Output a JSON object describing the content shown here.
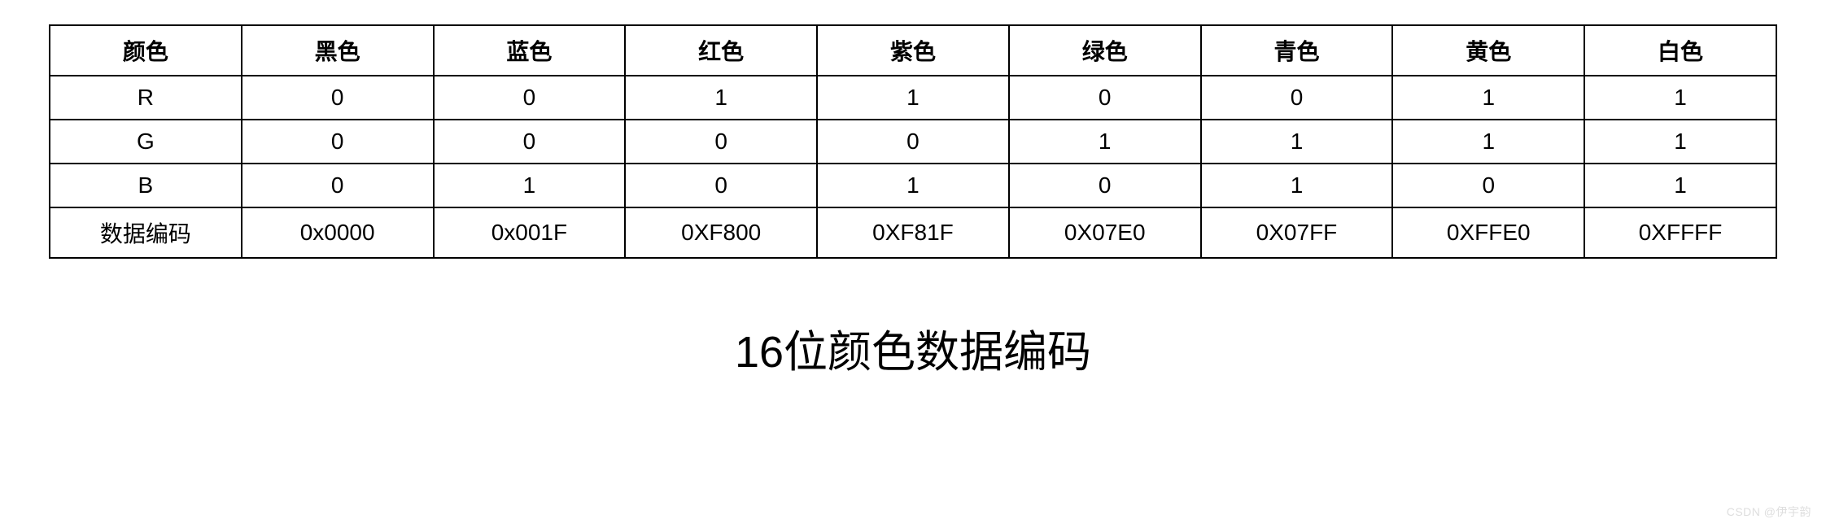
{
  "table": {
    "type": "table",
    "border_color": "#000000",
    "border_width": 2,
    "background_color": "#ffffff",
    "text_color": "#000000",
    "header_fontsize": 28,
    "cell_fontsize": 28,
    "header_fontweight": 700,
    "cell_fontweight": 400,
    "columns": [
      "颜色",
      "黑色",
      "蓝色",
      "红色",
      "紫色",
      "绿色",
      "青色",
      "黄色",
      "白色"
    ],
    "rows": [
      [
        "R",
        "0",
        "0",
        "1",
        "1",
        "0",
        "0",
        "1",
        "1"
      ],
      [
        "G",
        "0",
        "0",
        "0",
        "0",
        "1",
        "1",
        "1",
        "1"
      ],
      [
        "B",
        "0",
        "1",
        "0",
        "1",
        "0",
        "1",
        "0",
        "1"
      ],
      [
        "数据编码",
        "0x0000",
        "0x001F",
        "0XF800",
        "0XF81F",
        "0X07E0",
        "0X07FF",
        "0XFFE0",
        "0XFFFF"
      ]
    ]
  },
  "caption": "16位颜色数据编码",
  "caption_fontsize": 54,
  "watermark": "CSDN @伊宇韵"
}
